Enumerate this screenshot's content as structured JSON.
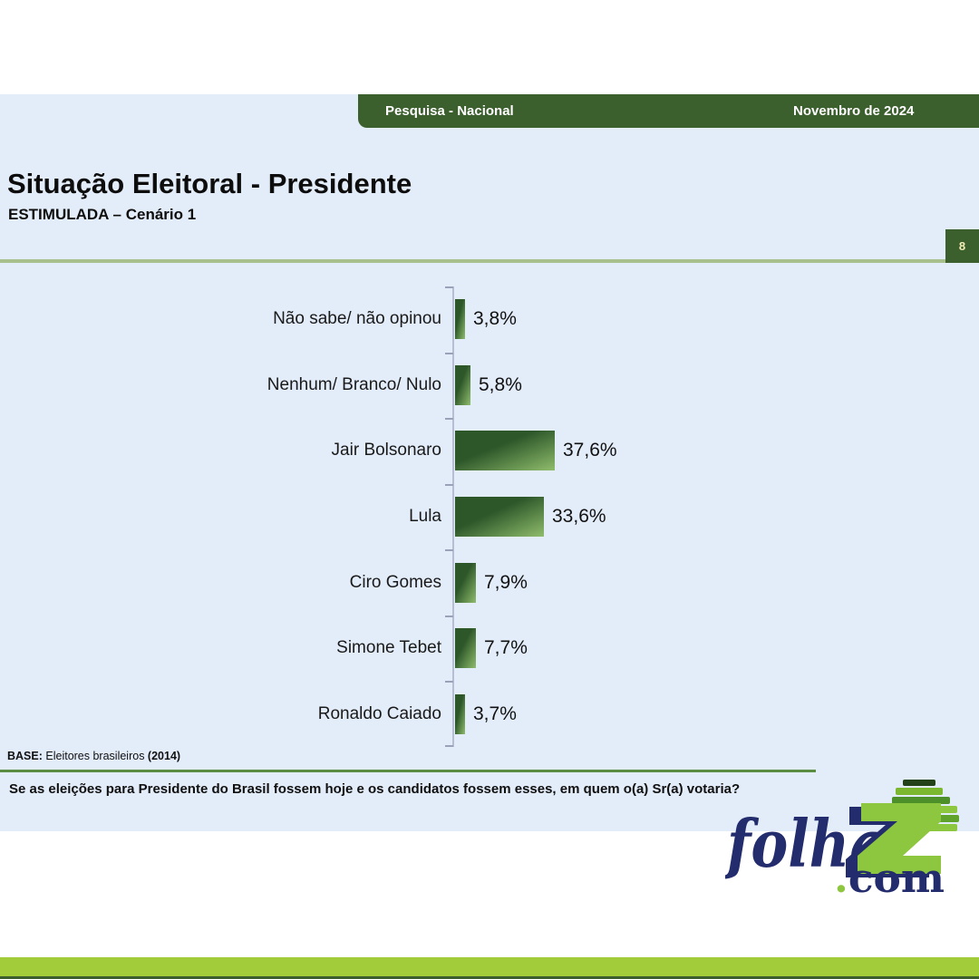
{
  "slide": {
    "header": {
      "left_label": "Pesquisa - Nacional",
      "right_label": "Novembro de 2024"
    },
    "title": "Situação Eleitoral - Presidente",
    "subtitle": "ESTIMULADA – Cenário 1",
    "page_number": "8",
    "base_note": {
      "prefix": "BASE:",
      "text": " Eleitores brasileiros ",
      "year": "(2014)"
    },
    "question": "Se as eleições para Presidente do Brasil fossem hoje e os candidatos fossem esses, em quem o(a) Sr(a) votaria?"
  },
  "chart_data": {
    "type": "bar",
    "orientation": "horizontal",
    "title": "Situação Eleitoral - Presidente — ESTIMULADA – Cenário 1",
    "categories": [
      "Não sabe/ não opinou",
      "Nenhum/ Branco/ Nulo",
      "Jair Bolsonaro",
      "Lula",
      "Ciro Gomes",
      "Simone Tebet",
      "Ronaldo Caiado"
    ],
    "values": [
      3.8,
      5.8,
      37.6,
      33.6,
      7.9,
      7.7,
      3.7
    ],
    "value_labels": [
      "3,8%",
      "5,8%",
      "37,6%",
      "33,6%",
      "7,9%",
      "7,7%",
      "3,7%"
    ],
    "xlabel": "",
    "ylabel": "",
    "xlim": [
      0,
      40
    ],
    "grid": false,
    "legend": false,
    "bar_color_dark": "#2d5629",
    "bar_color_light": "#8fbd6c"
  },
  "logo": {
    "word": "folha",
    "z_letter": "Z",
    "dot": ".",
    "suffix": "com",
    "navy": "#232c6c",
    "lime": "#8dc63f"
  },
  "colors": {
    "slide_background": "#e3ecf9",
    "header_green": "#3b5f2d",
    "divider_light_green": "#a8c08b",
    "divider_green": "#5a8c42",
    "bottom_lime": "#a3cc3b",
    "bottom_dark_green": "#3a5e2c"
  }
}
